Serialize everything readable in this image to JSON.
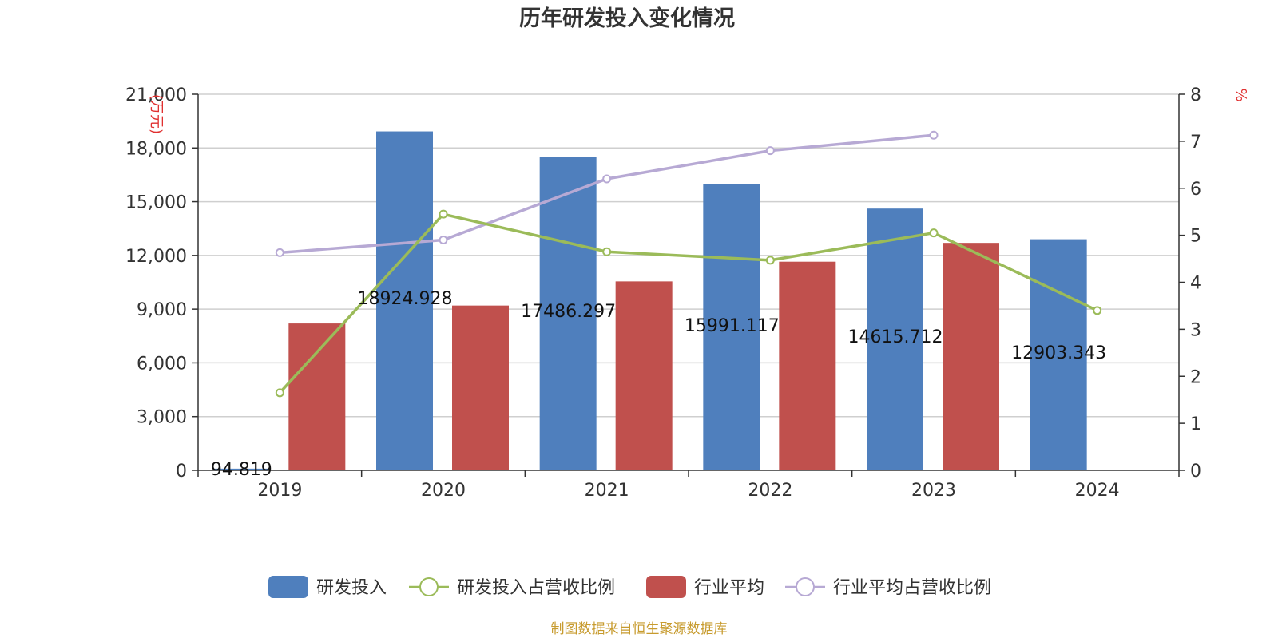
{
  "title": "历年研发投入变化情况",
  "source": "制图数据来自恒生聚源数据库",
  "colors": {
    "rd": "#4f7fbd",
    "rd_ratio": "#9bbb59",
    "industry": "#c0504d",
    "industry_ratio": "#b7a9d4",
    "axis_unit": "#e03030",
    "source": "#c79b2e"
  },
  "chart_data": {
    "type": "bar",
    "categories": [
      "2019",
      "2020",
      "2021",
      "2022",
      "2023",
      "2024"
    ],
    "y_left": {
      "unit": "(万元)",
      "ticks": [
        "0",
        "3,000",
        "6,000",
        "9,000",
        "12,000",
        "15,000",
        "18,000",
        "21,000"
      ],
      "min": 0,
      "max": 21000
    },
    "y_right": {
      "unit": "%",
      "ticks": [
        "0",
        "1",
        "2",
        "3",
        "4",
        "5",
        "6",
        "7",
        "8"
      ],
      "min": 0,
      "max": 8
    },
    "grid": true,
    "legend_position": "bottom-center",
    "series": [
      {
        "name": "研发投入",
        "type": "bar",
        "axis": "left",
        "values": [
          94.819,
          18924.928,
          17486.297,
          15991.117,
          14615.712,
          12903.343
        ],
        "labels": [
          "94.819",
          "18924.928",
          "17486.297",
          "15991.117",
          "14615.712",
          "12903.343"
        ]
      },
      {
        "name": "研发投入占营收比例",
        "type": "line",
        "axis": "right",
        "values": [
          1.65,
          5.45,
          4.65,
          4.47,
          5.05,
          3.4
        ]
      },
      {
        "name": "行业平均",
        "type": "bar",
        "axis": "left",
        "values": [
          8200,
          9200,
          10550,
          11650,
          12700,
          null
        ]
      },
      {
        "name": "行业平均占营收比例",
        "type": "line",
        "axis": "right",
        "values": [
          4.63,
          4.9,
          6.2,
          6.8,
          7.13,
          null
        ]
      }
    ]
  }
}
